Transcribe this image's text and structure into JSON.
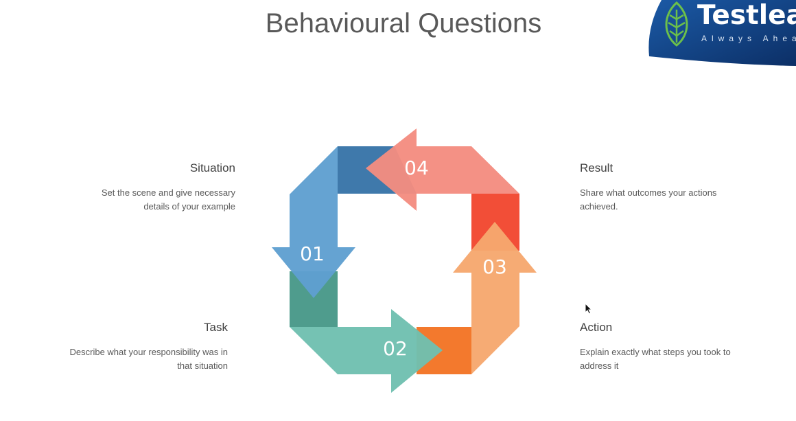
{
  "slide": {
    "title": "Behavioural Questions"
  },
  "logo": {
    "name": "Testleaf",
    "tagline": "Always Ahead",
    "icon": "leaf-icon"
  },
  "steps": [
    {
      "number": "01",
      "label": "Situation",
      "description": "Set the scene and give necessary details of your example",
      "color": "#5f9fd0"
    },
    {
      "number": "02",
      "label": "Task",
      "description": "Describe what your responsibility was in that situation",
      "color": "#6fc0b0"
    },
    {
      "number": "03",
      "label": "Action",
      "description": "Explain exactly what steps you took to address it",
      "color": "#f6a86e"
    },
    {
      "number": "04",
      "label": "Result",
      "description": "Share what outcomes your actions achieved.",
      "color": "#f48c80"
    }
  ]
}
